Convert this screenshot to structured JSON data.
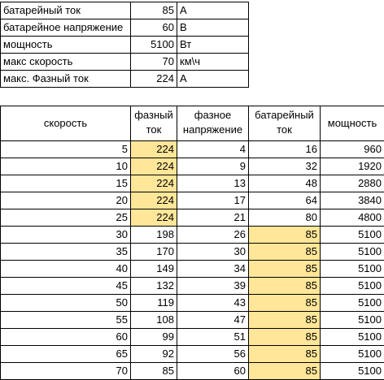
{
  "params": [
    {
      "label": "батарейный ток",
      "value": "85",
      "unit": "А"
    },
    {
      "label": "батарейное напряжение",
      "value": "60",
      "unit": "В"
    },
    {
      "label": "мощность",
      "value": "5100",
      "unit": "Вт"
    },
    {
      "label": "макс скорость",
      "value": "70",
      "unit": "км\\ч"
    },
    {
      "label": "макс. Фазный ток",
      "value": "224",
      "unit": "А"
    }
  ],
  "headers": {
    "speed": "скорость",
    "phase_current": "фазный ток",
    "phase_voltage": "фазное напряжение",
    "battery_current": "батарейный ток",
    "power": "мощность"
  },
  "highlight_color": "#ffe699",
  "rows": [
    {
      "speed": "5",
      "phase_current": "224",
      "phase_voltage": "4",
      "battery_current": "16",
      "power": "960",
      "hl_phase": true,
      "hl_battery": false
    },
    {
      "speed": "10",
      "phase_current": "224",
      "phase_voltage": "9",
      "battery_current": "32",
      "power": "1920",
      "hl_phase": true,
      "hl_battery": false
    },
    {
      "speed": "15",
      "phase_current": "224",
      "phase_voltage": "13",
      "battery_current": "48",
      "power": "2880",
      "hl_phase": true,
      "hl_battery": false
    },
    {
      "speed": "20",
      "phase_current": "224",
      "phase_voltage": "17",
      "battery_current": "64",
      "power": "3840",
      "hl_phase": true,
      "hl_battery": false
    },
    {
      "speed": "25",
      "phase_current": "224",
      "phase_voltage": "21",
      "battery_current": "80",
      "power": "4800",
      "hl_phase": true,
      "hl_battery": false
    },
    {
      "speed": "30",
      "phase_current": "198",
      "phase_voltage": "26",
      "battery_current": "85",
      "power": "5100",
      "hl_phase": false,
      "hl_battery": true
    },
    {
      "speed": "35",
      "phase_current": "170",
      "phase_voltage": "30",
      "battery_current": "85",
      "power": "5100",
      "hl_phase": false,
      "hl_battery": true
    },
    {
      "speed": "40",
      "phase_current": "149",
      "phase_voltage": "34",
      "battery_current": "85",
      "power": "5100",
      "hl_phase": false,
      "hl_battery": true
    },
    {
      "speed": "45",
      "phase_current": "132",
      "phase_voltage": "39",
      "battery_current": "85",
      "power": "5100",
      "hl_phase": false,
      "hl_battery": true
    },
    {
      "speed": "50",
      "phase_current": "119",
      "phase_voltage": "43",
      "battery_current": "85",
      "power": "5100",
      "hl_phase": false,
      "hl_battery": true
    },
    {
      "speed": "55",
      "phase_current": "108",
      "phase_voltage": "47",
      "battery_current": "85",
      "power": "5100",
      "hl_phase": false,
      "hl_battery": true
    },
    {
      "speed": "60",
      "phase_current": "99",
      "phase_voltage": "51",
      "battery_current": "85",
      "power": "5100",
      "hl_phase": false,
      "hl_battery": true
    },
    {
      "speed": "65",
      "phase_current": "92",
      "phase_voltage": "56",
      "battery_current": "85",
      "power": "5100",
      "hl_phase": false,
      "hl_battery": true
    },
    {
      "speed": "70",
      "phase_current": "85",
      "phase_voltage": "60",
      "battery_current": "85",
      "power": "5100",
      "hl_phase": false,
      "hl_battery": true
    }
  ]
}
